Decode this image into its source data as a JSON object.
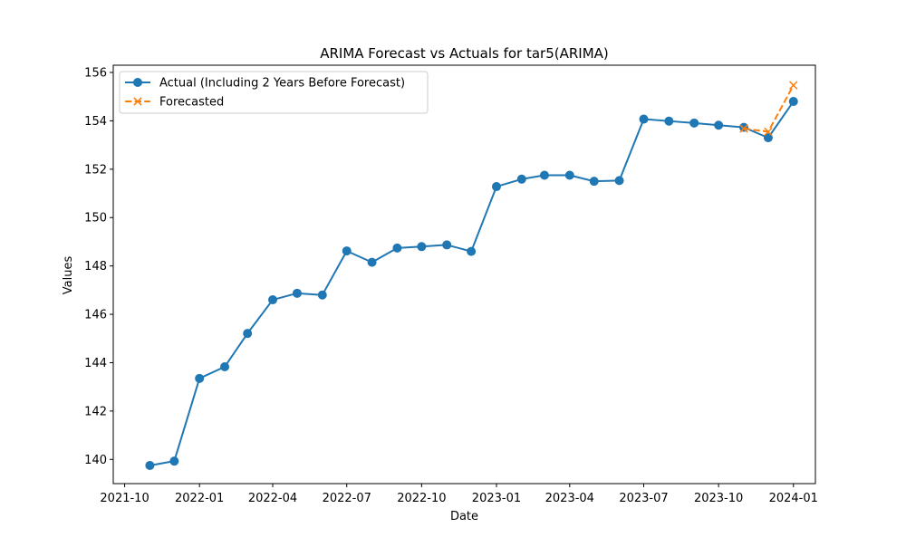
{
  "chart_data": {
    "type": "line",
    "title": "ARIMA Forecast vs Actuals for tar5(ARIMA)",
    "xlabel": "Date",
    "ylabel": "Values",
    "ylim": [
      139,
      156.3
    ],
    "xlim": [
      "2021-09-17",
      "2024-01-28"
    ],
    "x_ticks": [
      {
        "date": "2021-10-01",
        "label": "2021-10"
      },
      {
        "date": "2022-01-01",
        "label": "2022-01"
      },
      {
        "date": "2022-04-01",
        "label": "2022-04"
      },
      {
        "date": "2022-07-01",
        "label": "2022-07"
      },
      {
        "date": "2022-10-01",
        "label": "2022-10"
      },
      {
        "date": "2023-01-01",
        "label": "2023-01"
      },
      {
        "date": "2023-04-01",
        "label": "2023-04"
      },
      {
        "date": "2023-07-01",
        "label": "2023-07"
      },
      {
        "date": "2023-10-01",
        "label": "2023-10"
      },
      {
        "date": "2024-01-01",
        "label": "2024-01"
      }
    ],
    "y_ticks": [
      140,
      142,
      144,
      146,
      148,
      150,
      152,
      154,
      156
    ],
    "grid": false,
    "legend_position": "top-left",
    "series": [
      {
        "name": "Actual (Including 2 Years Before Forecast)",
        "color": "#1f77b4",
        "style": "solid",
        "marker": "circle",
        "points": [
          {
            "x": "2021-11-01",
            "y": 139.75
          },
          {
            "x": "2021-12-01",
            "y": 139.93
          },
          {
            "x": "2022-01-01",
            "y": 143.35
          },
          {
            "x": "2022-02-01",
            "y": 143.83
          },
          {
            "x": "2022-03-01",
            "y": 145.21
          },
          {
            "x": "2022-04-01",
            "y": 146.6
          },
          {
            "x": "2022-05-01",
            "y": 146.87
          },
          {
            "x": "2022-06-01",
            "y": 146.8
          },
          {
            "x": "2022-07-01",
            "y": 148.62
          },
          {
            "x": "2022-08-01",
            "y": 148.15
          },
          {
            "x": "2022-09-01",
            "y": 148.74
          },
          {
            "x": "2022-10-01",
            "y": 148.8
          },
          {
            "x": "2022-11-01",
            "y": 148.87
          },
          {
            "x": "2022-12-01",
            "y": 148.6
          },
          {
            "x": "2023-01-01",
            "y": 151.28
          },
          {
            "x": "2023-02-01",
            "y": 151.59
          },
          {
            "x": "2023-03-01",
            "y": 151.75
          },
          {
            "x": "2023-04-01",
            "y": 151.75
          },
          {
            "x": "2023-05-01",
            "y": 151.5
          },
          {
            "x": "2023-06-01",
            "y": 151.53
          },
          {
            "x": "2023-07-01",
            "y": 154.07
          },
          {
            "x": "2023-08-01",
            "y": 153.99
          },
          {
            "x": "2023-09-01",
            "y": 153.91
          },
          {
            "x": "2023-10-01",
            "y": 153.82
          },
          {
            "x": "2023-11-01",
            "y": 153.73
          },
          {
            "x": "2023-12-01",
            "y": 153.3
          },
          {
            "x": "2024-01-01",
            "y": 154.8
          }
        ]
      },
      {
        "name": "Forecasted",
        "color": "#ff7f0e",
        "style": "dashed",
        "marker": "x",
        "points": [
          {
            "x": "2023-11-01",
            "y": 153.68
          },
          {
            "x": "2023-12-01",
            "y": 153.55
          },
          {
            "x": "2024-01-01",
            "y": 155.47
          }
        ]
      }
    ]
  }
}
